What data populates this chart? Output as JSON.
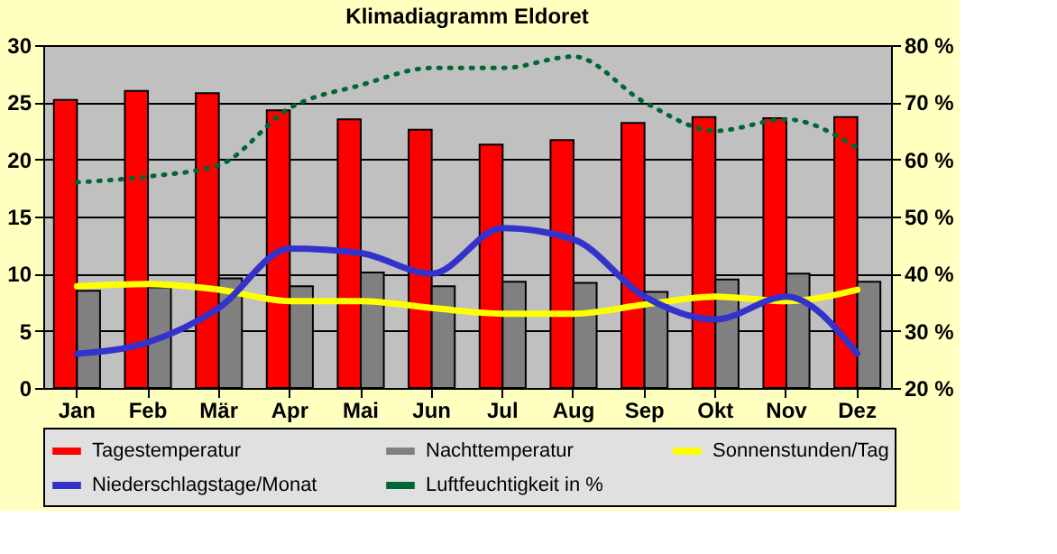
{
  "chart_data": {
    "type": "bar",
    "title": "Klimadiagramm Eldoret",
    "categories": [
      "Jan",
      "Feb",
      "Mär",
      "Apr",
      "Mai",
      "Jun",
      "Jul",
      "Aug",
      "Sep",
      "Okt",
      "Nov",
      "Dez"
    ],
    "series": [
      {
        "name": "Tagestemperatur",
        "color": "#ff0000",
        "values": [
          25.2,
          26.0,
          25.8,
          24.3,
          23.5,
          22.6,
          21.3,
          21.7,
          23.2,
          23.7,
          23.6,
          23.7
        ]
      },
      {
        "name": "Nachttemperatur",
        "color": "#808080",
        "values": [
          8.5,
          8.8,
          9.6,
          8.9,
          10.1,
          8.9,
          9.3,
          9.2,
          8.4,
          9.5,
          10.0,
          9.3
        ]
      },
      {
        "name": "Sonnenstunden/Tag",
        "type": "line",
        "color": "#ffff00",
        "line_style": "solid",
        "values": [
          8.9,
          9.1,
          8.6,
          7.6,
          7.6,
          7.0,
          6.5,
          6.5,
          7.3,
          8.0,
          7.6,
          8.6
        ]
      },
      {
        "name": "Niederschlagstage/Monat",
        "type": "line",
        "color": "#3333cc",
        "line_style": "solid",
        "values": [
          3.0,
          4.0,
          7.0,
          12.2,
          11.8,
          10.0,
          14.0,
          13.0,
          8.0,
          6.0,
          8.0,
          3.0
        ]
      },
      {
        "name": "Luftfeuchtigkeit in %",
        "type": "line",
        "color": "#006633",
        "line_style": "dotted",
        "axis": "y2",
        "values": [
          56,
          57,
          59,
          69,
          73,
          76,
          76,
          78,
          70,
          65,
          67,
          62
        ]
      }
    ],
    "ylim": [
      0,
      30
    ],
    "yticks": [
      0,
      5,
      10,
      15,
      20,
      25,
      30
    ],
    "y2lim": [
      20,
      80
    ],
    "y2ticks": [
      {
        "value": 20,
        "label": "20 %"
      },
      {
        "value": 30,
        "label": "30 %"
      },
      {
        "value": 40,
        "label": "40 %"
      },
      {
        "value": 50,
        "label": "50 %"
      },
      {
        "value": 60,
        "label": "60 %"
      },
      {
        "value": 70,
        "label": "70 %"
      },
      {
        "value": 80,
        "label": "80 %"
      }
    ],
    "grid": "y",
    "legend": "bottom",
    "marker": "none"
  }
}
